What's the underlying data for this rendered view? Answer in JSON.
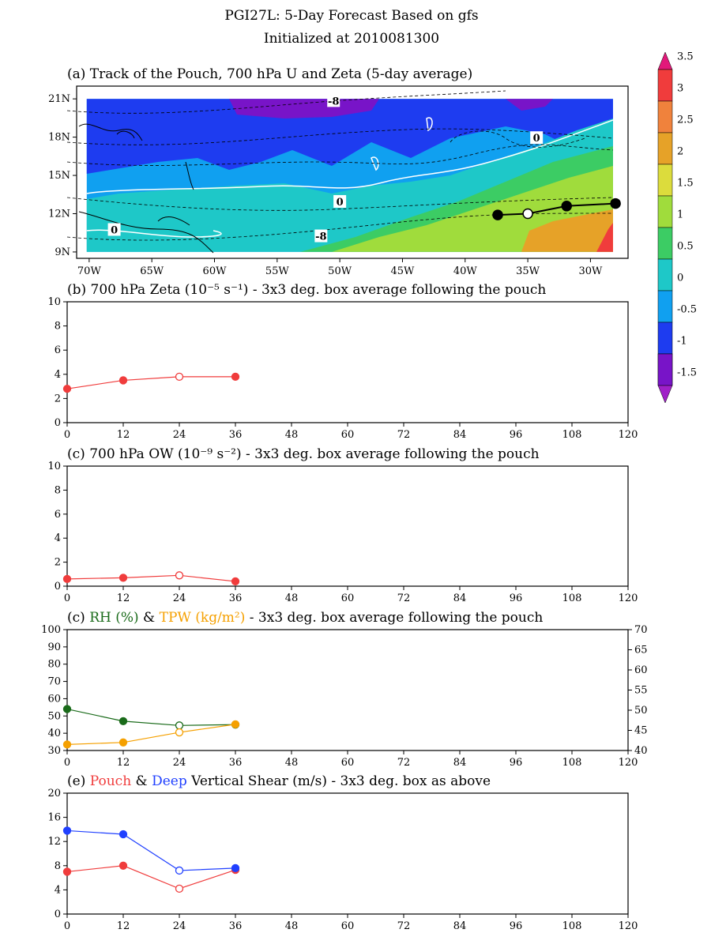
{
  "header": {
    "title": "PGI27L: 5-Day Forecast Based on gfs",
    "subtitle": "Initialized at 2010081300"
  },
  "colors": {
    "red": "#f03c3c",
    "green": "#1a6b1a",
    "orange": "#f5a000",
    "blue": "#2040ff",
    "black": "#000000"
  },
  "colorbar": {
    "labels": [
      "3.5",
      "3",
      "2.5",
      "2",
      "1.5",
      "1",
      "0.5",
      "0",
      "-0.5",
      "-1",
      "-1.5"
    ],
    "colors": [
      "#e2197a",
      "#f03c3c",
      "#f0823c",
      "#e6a228",
      "#dcdc3c",
      "#a0dc3c",
      "#3ccc64",
      "#1ec8c8",
      "#10a0f0",
      "#1e3cf0",
      "#7814c8",
      "#a020c8"
    ]
  },
  "chart_data": [
    {
      "type": "heatmap",
      "title": "(a) Track of the Pouch, 700 hPa U and Zeta (5-day average)",
      "x_ticks": [
        "70W",
        "65W",
        "60W",
        "55W",
        "50W",
        "45W",
        "40W",
        "35W",
        "30W"
      ],
      "x_tick_values": [
        -70,
        -65,
        -60,
        -55,
        -50,
        -45,
        -40,
        -35,
        -30
      ],
      "y_ticks": [
        "21N",
        "18N",
        "15N",
        "12N",
        "9N"
      ],
      "y_tick_values": [
        21,
        18,
        15,
        12,
        9
      ],
      "xlim": [
        -71,
        -27
      ],
      "ylim": [
        8.5,
        22
      ],
      "contour_labels": [
        {
          "text": "-8",
          "lon": -50.5,
          "lat": 20.8
        },
        {
          "text": "0",
          "lon": -34.3,
          "lat": 17.9
        },
        {
          "text": "0",
          "lon": -50,
          "lat": 12.9
        },
        {
          "text": "-8",
          "lon": -51.5,
          "lat": 10.2
        },
        {
          "text": "0",
          "lon": -68,
          "lat": 10.7
        }
      ],
      "track": [
        {
          "lon": -37.4,
          "lat": 11.9,
          "filled": true
        },
        {
          "lon": -35,
          "lat": 12.0,
          "filled": false
        },
        {
          "lon": -31.9,
          "lat": 12.6,
          "filled": true
        },
        {
          "lon": -28,
          "lat": 12.8,
          "filled": true
        }
      ]
    },
    {
      "type": "line",
      "title": "(b) 700 hPa Zeta (10⁻⁵ s⁻¹) - 3x3 deg. box average following the pouch",
      "x_ticks": [
        "0",
        "12",
        "24",
        "36",
        "48",
        "60",
        "72",
        "84",
        "96",
        "108",
        "120"
      ],
      "y_ticks": [
        "10",
        "8",
        "6",
        "4",
        "2",
        "0"
      ],
      "xlim": [
        0,
        120
      ],
      "ylim": [
        0,
        10
      ],
      "series": [
        {
          "color": "#f03c3c",
          "x": [
            0,
            12,
            24,
            36
          ],
          "values": [
            2.8,
            3.5,
            3.8,
            3.8
          ],
          "open": [
            false,
            false,
            true,
            false
          ]
        }
      ]
    },
    {
      "type": "line",
      "title": "(c) 700 hPa OW (10⁻⁹ s⁻²) - 3x3 deg. box average following the pouch",
      "x_ticks": [
        "0",
        "12",
        "24",
        "36",
        "48",
        "60",
        "72",
        "84",
        "96",
        "108",
        "120"
      ],
      "y_ticks": [
        "10",
        "8",
        "6",
        "4",
        "2",
        "0"
      ],
      "xlim": [
        0,
        120
      ],
      "ylim": [
        0,
        10
      ],
      "series": [
        {
          "color": "#f03c3c",
          "x": [
            0,
            12,
            24,
            36
          ],
          "values": [
            0.6,
            0.7,
            0.9,
            0.4
          ],
          "open": [
            false,
            false,
            true,
            false
          ]
        }
      ]
    },
    {
      "type": "line",
      "title_parts": [
        {
          "text": "(c) ",
          "color": "#000000"
        },
        {
          "text": "RH (%)",
          "color": "#1a6b1a"
        },
        {
          "text": " & ",
          "color": "#000000"
        },
        {
          "text": "TPW (kg/m²)",
          "color": "#f5a000"
        },
        {
          "text": "  - 3x3 deg. box average following the pouch",
          "color": "#000000"
        }
      ],
      "x_ticks": [
        "0",
        "12",
        "24",
        "36",
        "48",
        "60",
        "72",
        "84",
        "96",
        "108",
        "120"
      ],
      "y_ticks": [
        "100",
        "90",
        "80",
        "70",
        "60",
        "50",
        "40",
        "30"
      ],
      "y2_ticks": [
        "70",
        "65",
        "60",
        "55",
        "50",
        "45",
        "40"
      ],
      "xlim": [
        0,
        120
      ],
      "ylim": [
        30,
        100
      ],
      "y2lim": [
        40,
        70
      ],
      "series": [
        {
          "color": "#1a6b1a",
          "axis": "left",
          "x": [
            0,
            12,
            24,
            36
          ],
          "values": [
            54,
            47,
            44.5,
            45
          ],
          "open": [
            false,
            false,
            true,
            false
          ]
        },
        {
          "color": "#f5a000",
          "axis": "right",
          "x": [
            0,
            12,
            24,
            36
          ],
          "values": [
            41.5,
            42,
            44.5,
            46.5
          ],
          "open": [
            false,
            false,
            true,
            false
          ]
        }
      ]
    },
    {
      "type": "line",
      "title_parts": [
        {
          "text": "(e) ",
          "color": "#000000"
        },
        {
          "text": "Pouch",
          "color": "#f03c3c"
        },
        {
          "text": " & ",
          "color": "#000000"
        },
        {
          "text": "Deep",
          "color": "#2040ff"
        },
        {
          "text": " Vertical Shear (m/s) - 3x3 deg. box as above",
          "color": "#000000"
        }
      ],
      "x_ticks": [
        "0",
        "12",
        "24",
        "36",
        "48",
        "60",
        "72",
        "84",
        "96",
        "108",
        "120"
      ],
      "y_ticks": [
        "20",
        "16",
        "12",
        "8",
        "4",
        "0"
      ],
      "xlim": [
        0,
        120
      ],
      "ylim": [
        0,
        20
      ],
      "series": [
        {
          "color": "#f03c3c",
          "x": [
            0,
            12,
            24,
            36
          ],
          "values": [
            7,
            8,
            4.2,
            7.3
          ],
          "open": [
            false,
            false,
            true,
            false
          ]
        },
        {
          "color": "#2040ff",
          "x": [
            0,
            12,
            24,
            36
          ],
          "values": [
            13.8,
            13.2,
            7.2,
            7.6
          ],
          "open": [
            false,
            false,
            true,
            false
          ]
        }
      ]
    }
  ]
}
